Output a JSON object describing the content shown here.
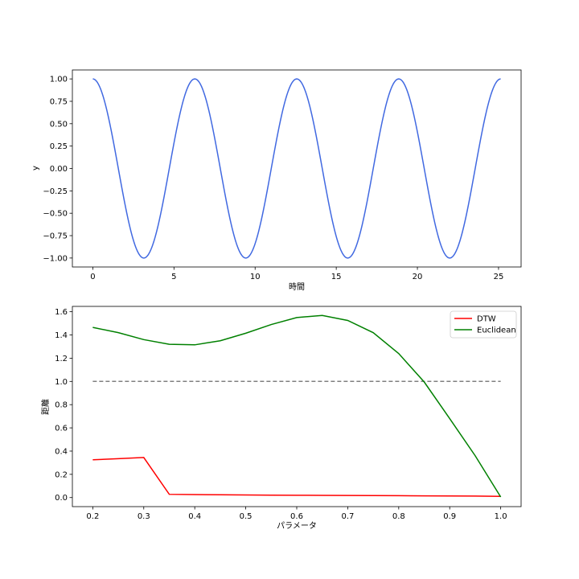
{
  "chart_data": [
    {
      "type": "line",
      "title": "",
      "xlabel": "時間",
      "ylabel": "y",
      "xlim": [
        -1.26,
        26.39
      ],
      "ylim": [
        -1.1,
        1.1
      ],
      "xticks": [
        0,
        5,
        10,
        15,
        20,
        25
      ],
      "xtick_labels": [
        "0",
        "5",
        "10",
        "15",
        "20",
        "25"
      ],
      "yticks": [
        1.0,
        0.75,
        0.5,
        0.25,
        0.0,
        -0.25,
        -0.5,
        -0.75,
        -1.0
      ],
      "ytick_labels": [
        "1.00",
        "0.75",
        "0.50",
        "0.25",
        "0.00",
        "−0.25",
        "−0.50",
        "−0.75",
        "−1.00"
      ],
      "grid": false,
      "series": [
        {
          "function": "cos(x)",
          "x_range": [
            0,
            25.13
          ],
          "color": "#4169e1"
        }
      ]
    },
    {
      "type": "line",
      "title": "",
      "xlabel": "パラメータ",
      "ylabel": "距離",
      "xlim": [
        0.16,
        1.04
      ],
      "ylim": [
        -0.078,
        1.646
      ],
      "xticks": [
        0.2,
        0.3,
        0.4,
        0.5,
        0.6,
        0.7,
        0.8,
        0.9,
        1.0
      ],
      "xtick_labels": [
        "0.2",
        "0.3",
        "0.4",
        "0.5",
        "0.6",
        "0.7",
        "0.8",
        "0.9",
        "1.0"
      ],
      "yticks": [
        0.0,
        0.2,
        0.4,
        0.6,
        0.8,
        1.0,
        1.2,
        1.4,
        1.6
      ],
      "ytick_labels": [
        "0.0",
        "0.2",
        "0.4",
        "0.6",
        "0.8",
        "1.0",
        "1.2",
        "1.4",
        "1.6"
      ],
      "grid": false,
      "legend": "upper-right",
      "x": [
        0.2,
        0.25,
        0.3,
        0.35,
        0.4,
        0.45,
        0.5,
        0.55,
        0.6,
        0.65,
        0.7,
        0.75,
        0.8,
        0.85,
        0.9,
        0.95,
        1.0
      ],
      "series": [
        {
          "name": "DTW",
          "color": "#ff0000",
          "values": [
            0.325,
            0.335,
            0.345,
            0.028,
            0.026,
            0.024,
            0.022,
            0.021,
            0.02,
            0.019,
            0.018,
            0.017,
            0.016,
            0.015,
            0.014,
            0.013,
            0.01
          ]
        },
        {
          "name": "Euclidean",
          "color": "#008000",
          "values": [
            1.465,
            1.42,
            1.36,
            1.32,
            1.315,
            1.35,
            1.415,
            1.49,
            1.55,
            1.568,
            1.525,
            1.42,
            1.24,
            0.995,
            0.68,
            0.36,
            0.005
          ]
        }
      ],
      "reference_line": {
        "y": 1.0,
        "x_range": [
          0.2,
          1.0
        ],
        "style": "dashed",
        "color": "#808080"
      }
    }
  ]
}
